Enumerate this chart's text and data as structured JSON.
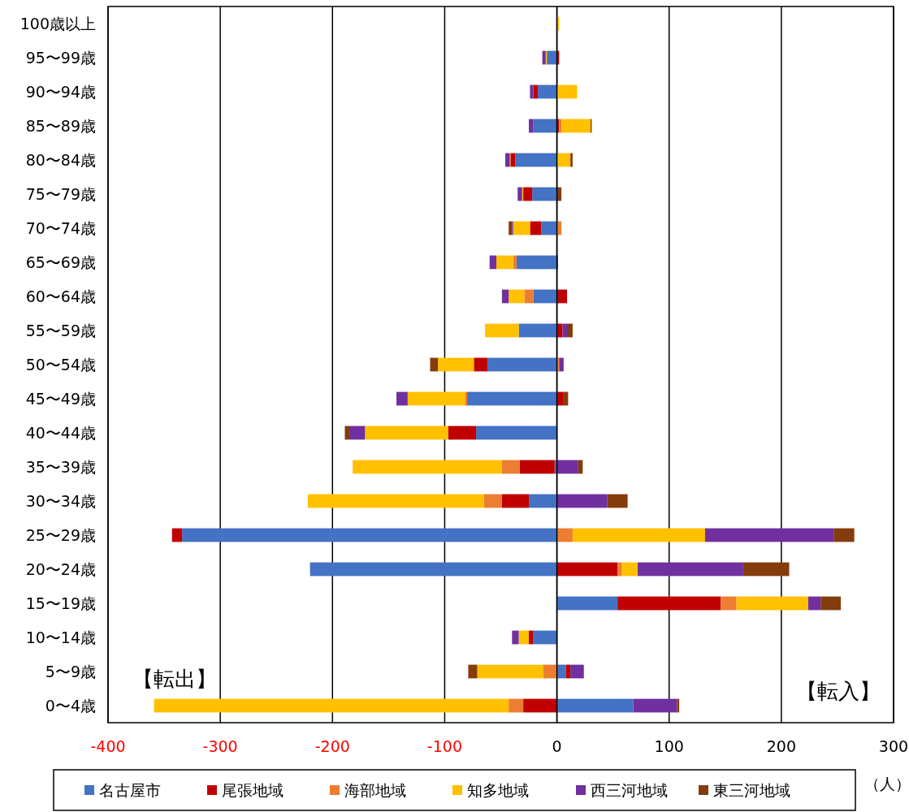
{
  "chart_data": {
    "type": "bar",
    "orientation": "horizontal",
    "stacked": true,
    "xlabel": "（人）",
    "categories": [
      "100歳以上",
      "95〜99歳",
      "90〜94歳",
      "85〜89歳",
      "80〜84歳",
      "75〜79歳",
      "70〜74歳",
      "65〜69歳",
      "60〜64歳",
      "55〜59歳",
      "50〜54歳",
      "45〜49歳",
      "40〜44歳",
      "35〜39歳",
      "30〜34歳",
      "25〜29歳",
      "20〜24歳",
      "15〜19歳",
      "10〜14歳",
      "5〜9歳",
      "0〜4歳"
    ],
    "series": [
      {
        "name": "名古屋市",
        "color": "#4472c4",
        "values": [
          0,
          -9,
          -17,
          -21,
          -37,
          -22,
          -14,
          -36,
          -21,
          -34,
          -62,
          -80,
          -72,
          -2,
          -25,
          -334,
          -220,
          54,
          -21,
          8,
          68
        ]
      },
      {
        "name": "尾張地域",
        "color": "#c00000",
        "values": [
          0,
          2,
          -4,
          2,
          -4,
          -8,
          -10,
          0,
          9,
          5,
          -12,
          6,
          -25,
          -31,
          -24,
          -9,
          54,
          92,
          -4,
          4,
          -30
        ]
      },
      {
        "name": "海部地域",
        "color": "#ed7d31",
        "values": [
          0,
          0,
          0,
          2,
          -1,
          0,
          4,
          -3,
          -8,
          0,
          2,
          -2,
          0,
          -16,
          -16,
          14,
          4,
          14,
          0,
          -12,
          -13
        ]
      },
      {
        "name": "知多地域",
        "color": "#ffc000",
        "values": [
          2,
          -1,
          18,
          26,
          12,
          -1,
          -15,
          -15,
          -14,
          -30,
          -32,
          -51,
          -74,
          -133,
          -157,
          118,
          14,
          64,
          -9,
          -59,
          -316
        ]
      },
      {
        "name": "西三河地域",
        "color": "#7030a0",
        "values": [
          0,
          -3,
          -3,
          -4,
          -4,
          -4,
          -1,
          -6,
          -6,
          4,
          4,
          -10,
          -14,
          19,
          45,
          115,
          94,
          11,
          -6,
          12,
          39
        ]
      },
      {
        "name": "東三河地域",
        "color": "#843c0c",
        "values": [
          0,
          0,
          0,
          1,
          2,
          4,
          -3,
          1,
          0,
          5,
          -7,
          4,
          -4,
          4,
          18,
          18,
          41,
          18,
          0,
          -8,
          2
        ]
      }
    ],
    "xlim": [
      -400,
      300
    ],
    "xticks": [
      -400,
      -300,
      -200,
      -100,
      0,
      100,
      200,
      300
    ],
    "grid": "x",
    "legend": "bottom",
    "annotations": [
      "【転出】",
      "【転入】"
    ]
  }
}
